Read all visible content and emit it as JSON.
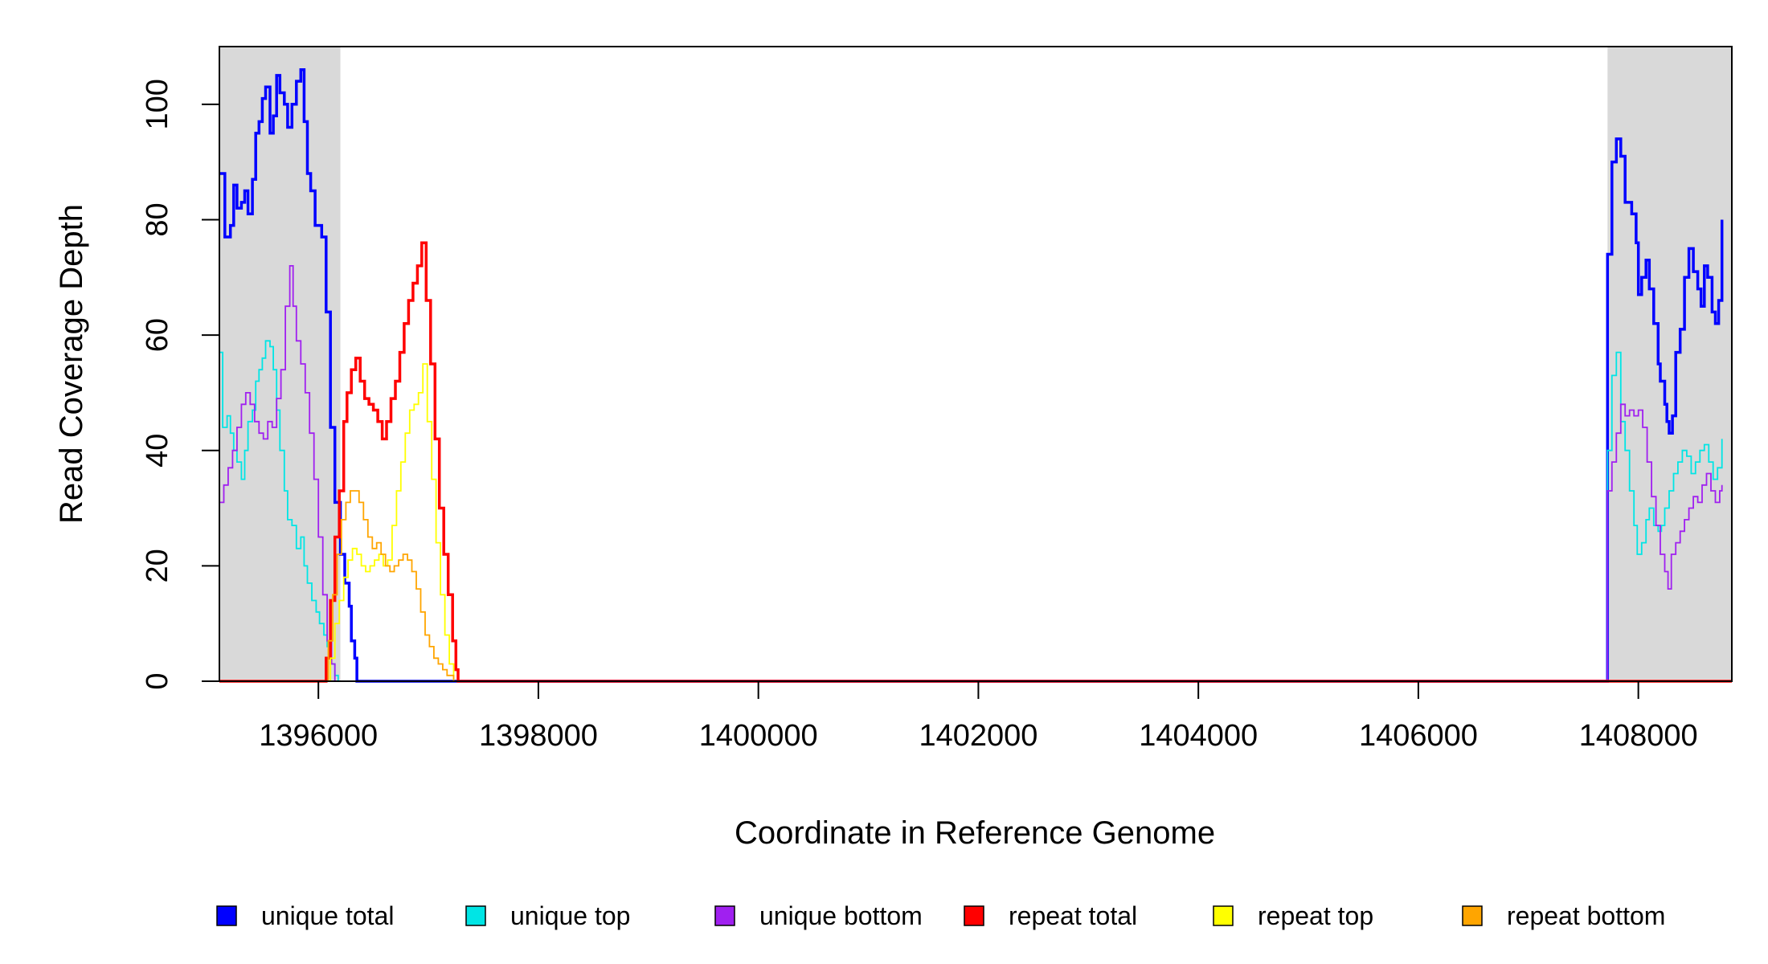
{
  "chart_data": {
    "type": "line",
    "xlabel": "Coordinate in Reference Genome",
    "ylabel": "Read Coverage Depth",
    "xlim": [
      1395100,
      1408850
    ],
    "ylim": [
      0,
      110
    ],
    "x_ticks": [
      1396000,
      1398000,
      1400000,
      1402000,
      1404000,
      1406000,
      1408000
    ],
    "x_tick_labels": [
      "1396000",
      "1398000",
      "1400000",
      "1402000",
      "1404000",
      "1406000",
      "1408000"
    ],
    "y_ticks": [
      0,
      20,
      40,
      60,
      80,
      100
    ],
    "y_tick_labels": [
      "0",
      "20",
      "40",
      "60",
      "80",
      "100"
    ],
    "shaded_regions": [
      {
        "x0": 1395100,
        "x1": 1396200
      },
      {
        "x0": 1407720,
        "x1": 1408850
      }
    ],
    "shade_color": "#d9d9d9",
    "legend_placement": "bottom",
    "series": [
      {
        "name": "unique total",
        "color": "#0000ff",
        "width": 3.5,
        "points": [
          [
            1395100,
            88
          ],
          [
            1395150,
            77
          ],
          [
            1395200,
            79
          ],
          [
            1395230,
            86
          ],
          [
            1395260,
            82
          ],
          [
            1395300,
            83
          ],
          [
            1395330,
            85
          ],
          [
            1395360,
            81
          ],
          [
            1395400,
            87
          ],
          [
            1395430,
            95
          ],
          [
            1395460,
            97
          ],
          [
            1395490,
            101
          ],
          [
            1395520,
            103
          ],
          [
            1395560,
            95
          ],
          [
            1395590,
            98
          ],
          [
            1395620,
            105
          ],
          [
            1395650,
            102
          ],
          [
            1395690,
            100
          ],
          [
            1395720,
            96
          ],
          [
            1395760,
            100
          ],
          [
            1395800,
            104
          ],
          [
            1395840,
            106
          ],
          [
            1395870,
            97
          ],
          [
            1395900,
            88
          ],
          [
            1395930,
            85
          ],
          [
            1395970,
            79
          ],
          [
            1396030,
            77
          ],
          [
            1396070,
            64
          ],
          [
            1396110,
            44
          ],
          [
            1396150,
            31
          ],
          [
            1396200,
            22
          ],
          [
            1396240,
            17
          ],
          [
            1396280,
            13
          ],
          [
            1396300,
            7
          ],
          [
            1396330,
            4
          ],
          [
            1396350,
            0
          ],
          [
            1407700,
            0
          ],
          [
            1407720,
            74
          ],
          [
            1407760,
            90
          ],
          [
            1407800,
            94
          ],
          [
            1407840,
            91
          ],
          [
            1407880,
            83
          ],
          [
            1407940,
            81
          ],
          [
            1407980,
            76
          ],
          [
            1408000,
            67
          ],
          [
            1408030,
            70
          ],
          [
            1408070,
            73
          ],
          [
            1408100,
            68
          ],
          [
            1408140,
            62
          ],
          [
            1408180,
            55
          ],
          [
            1408200,
            52
          ],
          [
            1408240,
            48
          ],
          [
            1408260,
            45
          ],
          [
            1408280,
            43
          ],
          [
            1408310,
            46
          ],
          [
            1408340,
            57
          ],
          [
            1408380,
            61
          ],
          [
            1408420,
            70
          ],
          [
            1408460,
            75
          ],
          [
            1408500,
            71
          ],
          [
            1408540,
            68
          ],
          [
            1408570,
            65
          ],
          [
            1408600,
            72
          ],
          [
            1408630,
            70
          ],
          [
            1408670,
            64
          ],
          [
            1408700,
            62
          ],
          [
            1408730,
            66
          ],
          [
            1408760,
            80
          ]
        ]
      },
      {
        "name": "unique top",
        "color": "#00e5e5",
        "width": 1.8,
        "points": [
          [
            1395100,
            57
          ],
          [
            1395130,
            44
          ],
          [
            1395170,
            46
          ],
          [
            1395200,
            43
          ],
          [
            1395230,
            40
          ],
          [
            1395260,
            38
          ],
          [
            1395300,
            35
          ],
          [
            1395330,
            40
          ],
          [
            1395360,
            45
          ],
          [
            1395400,
            47
          ],
          [
            1395430,
            52
          ],
          [
            1395460,
            54
          ],
          [
            1395490,
            56
          ],
          [
            1395520,
            59
          ],
          [
            1395560,
            58
          ],
          [
            1395590,
            54
          ],
          [
            1395620,
            47
          ],
          [
            1395650,
            40
          ],
          [
            1395690,
            33
          ],
          [
            1395720,
            28
          ],
          [
            1395760,
            27
          ],
          [
            1395800,
            23
          ],
          [
            1395840,
            25
          ],
          [
            1395870,
            20
          ],
          [
            1395900,
            17
          ],
          [
            1395940,
            14
          ],
          [
            1395980,
            12
          ],
          [
            1396010,
            10
          ],
          [
            1396050,
            8
          ],
          [
            1396080,
            6
          ],
          [
            1396110,
            3
          ],
          [
            1396150,
            1
          ],
          [
            1396180,
            0
          ],
          [
            1407700,
            0
          ],
          [
            1407720,
            40
          ],
          [
            1407760,
            53
          ],
          [
            1407800,
            57
          ],
          [
            1407840,
            45
          ],
          [
            1407880,
            40
          ],
          [
            1407920,
            33
          ],
          [
            1407960,
            27
          ],
          [
            1407990,
            22
          ],
          [
            1408030,
            24
          ],
          [
            1408070,
            28
          ],
          [
            1408100,
            30
          ],
          [
            1408140,
            27
          ],
          [
            1408180,
            26
          ],
          [
            1408210,
            27
          ],
          [
            1408240,
            30
          ],
          [
            1408280,
            33
          ],
          [
            1408320,
            36
          ],
          [
            1408360,
            38
          ],
          [
            1408400,
            40
          ],
          [
            1408440,
            39
          ],
          [
            1408480,
            36
          ],
          [
            1408520,
            38
          ],
          [
            1408560,
            40
          ],
          [
            1408600,
            41
          ],
          [
            1408640,
            38
          ],
          [
            1408680,
            35
          ],
          [
            1408720,
            37
          ],
          [
            1408760,
            42
          ]
        ]
      },
      {
        "name": "unique bottom",
        "color": "#a020f0",
        "width": 1.8,
        "points": [
          [
            1395100,
            31
          ],
          [
            1395140,
            34
          ],
          [
            1395180,
            37
          ],
          [
            1395220,
            40
          ],
          [
            1395260,
            44
          ],
          [
            1395300,
            48
          ],
          [
            1395340,
            50
          ],
          [
            1395380,
            48
          ],
          [
            1395420,
            45
          ],
          [
            1395460,
            43
          ],
          [
            1395500,
            42
          ],
          [
            1395540,
            45
          ],
          [
            1395580,
            44
          ],
          [
            1395620,
            49
          ],
          [
            1395660,
            54
          ],
          [
            1395700,
            65
          ],
          [
            1395740,
            72
          ],
          [
            1395770,
            65
          ],
          [
            1395800,
            59
          ],
          [
            1395840,
            55
          ],
          [
            1395880,
            50
          ],
          [
            1395920,
            43
          ],
          [
            1395960,
            35
          ],
          [
            1396000,
            25
          ],
          [
            1396040,
            15
          ],
          [
            1396080,
            7
          ],
          [
            1396120,
            3
          ],
          [
            1396150,
            0
          ],
          [
            1407700,
            0
          ],
          [
            1407720,
            33
          ],
          [
            1407760,
            38
          ],
          [
            1407800,
            43
          ],
          [
            1407840,
            48
          ],
          [
            1407880,
            46
          ],
          [
            1407920,
            47
          ],
          [
            1407960,
            46
          ],
          [
            1408000,
            47
          ],
          [
            1408040,
            44
          ],
          [
            1408080,
            38
          ],
          [
            1408120,
            32
          ],
          [
            1408160,
            27
          ],
          [
            1408200,
            22
          ],
          [
            1408240,
            19
          ],
          [
            1408270,
            16
          ],
          [
            1408300,
            22
          ],
          [
            1408340,
            24
          ],
          [
            1408380,
            26
          ],
          [
            1408420,
            28
          ],
          [
            1408460,
            30
          ],
          [
            1408500,
            32
          ],
          [
            1408540,
            31
          ],
          [
            1408580,
            34
          ],
          [
            1408620,
            36
          ],
          [
            1408660,
            33
          ],
          [
            1408700,
            31
          ],
          [
            1408740,
            33
          ],
          [
            1408760,
            34
          ]
        ]
      },
      {
        "name": "repeat total",
        "color": "#ff0000",
        "width": 3.5,
        "points": [
          [
            1395100,
            0
          ],
          [
            1396040,
            0
          ],
          [
            1396070,
            4
          ],
          [
            1396110,
            14
          ],
          [
            1396150,
            25
          ],
          [
            1396190,
            33
          ],
          [
            1396230,
            45
          ],
          [
            1396260,
            50
          ],
          [
            1396300,
            54
          ],
          [
            1396340,
            56
          ],
          [
            1396380,
            52
          ],
          [
            1396420,
            49
          ],
          [
            1396460,
            48
          ],
          [
            1396500,
            47
          ],
          [
            1396540,
            45
          ],
          [
            1396580,
            42
          ],
          [
            1396620,
            45
          ],
          [
            1396660,
            49
          ],
          [
            1396700,
            52
          ],
          [
            1396740,
            57
          ],
          [
            1396780,
            62
          ],
          [
            1396820,
            66
          ],
          [
            1396860,
            69
          ],
          [
            1396900,
            72
          ],
          [
            1396940,
            76
          ],
          [
            1396980,
            66
          ],
          [
            1397020,
            55
          ],
          [
            1397060,
            42
          ],
          [
            1397100,
            30
          ],
          [
            1397140,
            22
          ],
          [
            1397180,
            15
          ],
          [
            1397220,
            7
          ],
          [
            1397250,
            2
          ],
          [
            1397270,
            0
          ],
          [
            1408850,
            0
          ]
        ]
      },
      {
        "name": "repeat top",
        "color": "#ffff00",
        "width": 1.8,
        "points": [
          [
            1395100,
            0
          ],
          [
            1396070,
            0
          ],
          [
            1396110,
            4
          ],
          [
            1396150,
            10
          ],
          [
            1396190,
            14
          ],
          [
            1396230,
            18
          ],
          [
            1396270,
            21
          ],
          [
            1396310,
            23
          ],
          [
            1396350,
            22
          ],
          [
            1396390,
            20
          ],
          [
            1396430,
            19
          ],
          [
            1396470,
            20
          ],
          [
            1396510,
            21
          ],
          [
            1396550,
            22
          ],
          [
            1396590,
            20
          ],
          [
            1396630,
            21
          ],
          [
            1396670,
            27
          ],
          [
            1396710,
            33
          ],
          [
            1396750,
            38
          ],
          [
            1396790,
            43
          ],
          [
            1396830,
            47
          ],
          [
            1396870,
            48
          ],
          [
            1396910,
            50
          ],
          [
            1396950,
            55
          ],
          [
            1396990,
            45
          ],
          [
            1397030,
            35
          ],
          [
            1397070,
            24
          ],
          [
            1397110,
            15
          ],
          [
            1397150,
            8
          ],
          [
            1397190,
            3
          ],
          [
            1397230,
            0
          ],
          [
            1408850,
            0
          ]
        ]
      },
      {
        "name": "repeat bottom",
        "color": "#ffa500",
        "width": 1.8,
        "points": [
          [
            1395100,
            0
          ],
          [
            1396050,
            0
          ],
          [
            1396090,
            7
          ],
          [
            1396130,
            15
          ],
          [
            1396170,
            22
          ],
          [
            1396210,
            28
          ],
          [
            1396250,
            31
          ],
          [
            1396290,
            33
          ],
          [
            1396330,
            33
          ],
          [
            1396370,
            31
          ],
          [
            1396410,
            28
          ],
          [
            1396450,
            25
          ],
          [
            1396490,
            23
          ],
          [
            1396530,
            24
          ],
          [
            1396570,
            22
          ],
          [
            1396610,
            20
          ],
          [
            1396650,
            19
          ],
          [
            1396690,
            20
          ],
          [
            1396730,
            21
          ],
          [
            1396770,
            22
          ],
          [
            1396810,
            21
          ],
          [
            1396850,
            19
          ],
          [
            1396890,
            16
          ],
          [
            1396930,
            12
          ],
          [
            1396970,
            8
          ],
          [
            1397010,
            6
          ],
          [
            1397050,
            4
          ],
          [
            1397090,
            3
          ],
          [
            1397130,
            2
          ],
          [
            1397170,
            1
          ],
          [
            1397230,
            0
          ],
          [
            1408850,
            0
          ]
        ]
      }
    ]
  }
}
